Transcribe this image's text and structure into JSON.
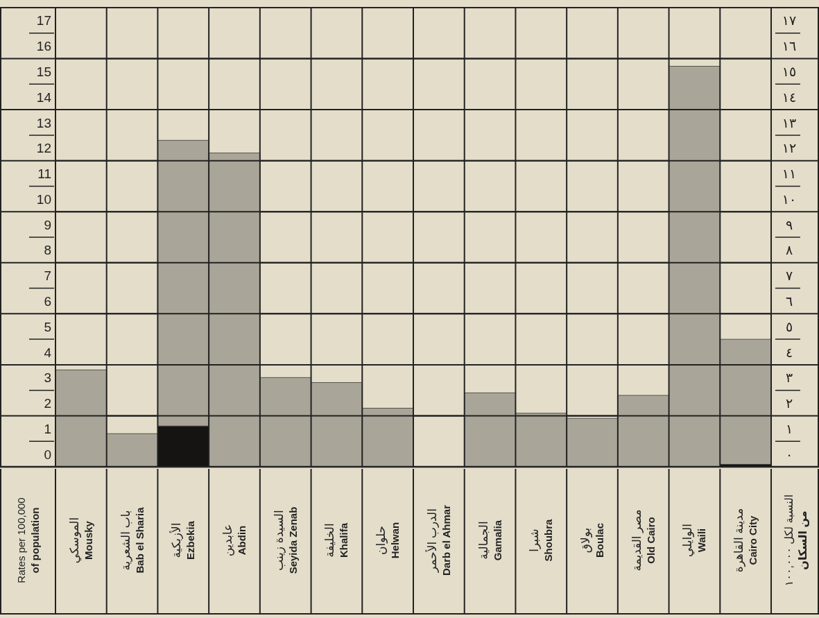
{
  "chart_data": {
    "type": "bar",
    "stacked": true,
    "ylabel": "Rates per 100,000\nof population",
    "y2label": "النسبة لكل ١٠٠,٠٠٠\nمن السكان",
    "categories": [
      "الموسكي\nMousky",
      "باب الشعرية\nBab el Sharia",
      "الأزبكية\nEzbekia",
      "عابدين\nAbdin",
      "السيدة زينب\nSeyida Zenab",
      "الخليفة\nKhalifa",
      "حلوان\nHelwan",
      "الدرب الأحمر\nDarb el Ahmar",
      "الجمالية\nGamalia",
      "شبرا\nShoubra",
      "بولاق\nBoulac",
      "مصر القديمة\nOld Cairo",
      "الوايلي\nWaili",
      "مدينة القاهرة\nCairo City"
    ],
    "series": [
      {
        "color": "#161412",
        "values": [
          0,
          0,
          1.6,
          0,
          0,
          0,
          0,
          0,
          0,
          0,
          0,
          0,
          0,
          0.1
        ]
      },
      {
        "color": "#a9a699",
        "values": [
          3.8,
          1.3,
          11.2,
          12.3,
          3.5,
          3.3,
          2.3,
          0,
          2.9,
          2.1,
          1.9,
          2.8,
          15.7,
          4.9
        ]
      }
    ],
    "ylim": [
      0,
      18
    ],
    "yticks": [
      {
        "value": 0.5,
        "label": "0"
      },
      {
        "value": 1.5,
        "label": "1"
      },
      {
        "value": 2.5,
        "label": "2"
      },
      {
        "value": 3.5,
        "label": "3"
      },
      {
        "value": 4.5,
        "label": "4"
      },
      {
        "value": 5.5,
        "label": "5"
      },
      {
        "value": 6.5,
        "label": "6"
      },
      {
        "value": 7.5,
        "label": "7"
      },
      {
        "value": 8.5,
        "label": "8"
      },
      {
        "value": 9.5,
        "label": "9"
      },
      {
        "value": 10.5,
        "label": "10"
      },
      {
        "value": 11.5,
        "label": "11"
      },
      {
        "value": 12.5,
        "label": "12"
      },
      {
        "value": 13.5,
        "label": "13"
      },
      {
        "value": 14.5,
        "label": "14"
      },
      {
        "value": 15.5,
        "label": "15"
      },
      {
        "value": 16.5,
        "label": "16"
      },
      {
        "value": 17.5,
        "label": "17"
      },
      {
        "value": 0,
        "label": null
      },
      {
        "value": 2,
        "label": null
      },
      {
        "value": 4,
        "label": null
      },
      {
        "value": 6,
        "label": null
      },
      {
        "value": 8,
        "label": null
      },
      {
        "value": 10,
        "label": null
      },
      {
        "value": 12,
        "label": null
      },
      {
        "value": 14,
        "label": null
      },
      {
        "value": 16,
        "label": null
      },
      {
        "value": 18,
        "label": null
      }
    ],
    "y2lim": [
      0,
      18
    ],
    "y2ticks": [
      {
        "value": 0.5,
        "label": "٠"
      },
      {
        "value": 1.5,
        "label": "١"
      },
      {
        "value": 2.5,
        "label": "٢"
      },
      {
        "value": 3.5,
        "label": "٣"
      },
      {
        "value": 4.5,
        "label": "٤"
      },
      {
        "value": 5.5,
        "label": "٥"
      },
      {
        "value": 6.5,
        "label": "٦"
      },
      {
        "value": 7.5,
        "label": "٧"
      },
      {
        "value": 8.5,
        "label": "٨"
      },
      {
        "value": 9.5,
        "label": "٩"
      },
      {
        "value": 10.5,
        "label": "١٠"
      },
      {
        "value": 11.5,
        "label": "١١"
      },
      {
        "value": 12.5,
        "label": "١٢"
      },
      {
        "value": 13.5,
        "label": "١٣"
      },
      {
        "value": 14.5,
        "label": "١٤"
      },
      {
        "value": 15.5,
        "label": "١٥"
      },
      {
        "value": 16.5,
        "label": "١٦"
      },
      {
        "value": 17.5,
        "label": "١٧"
      }
    ],
    "grid": "y"
  }
}
